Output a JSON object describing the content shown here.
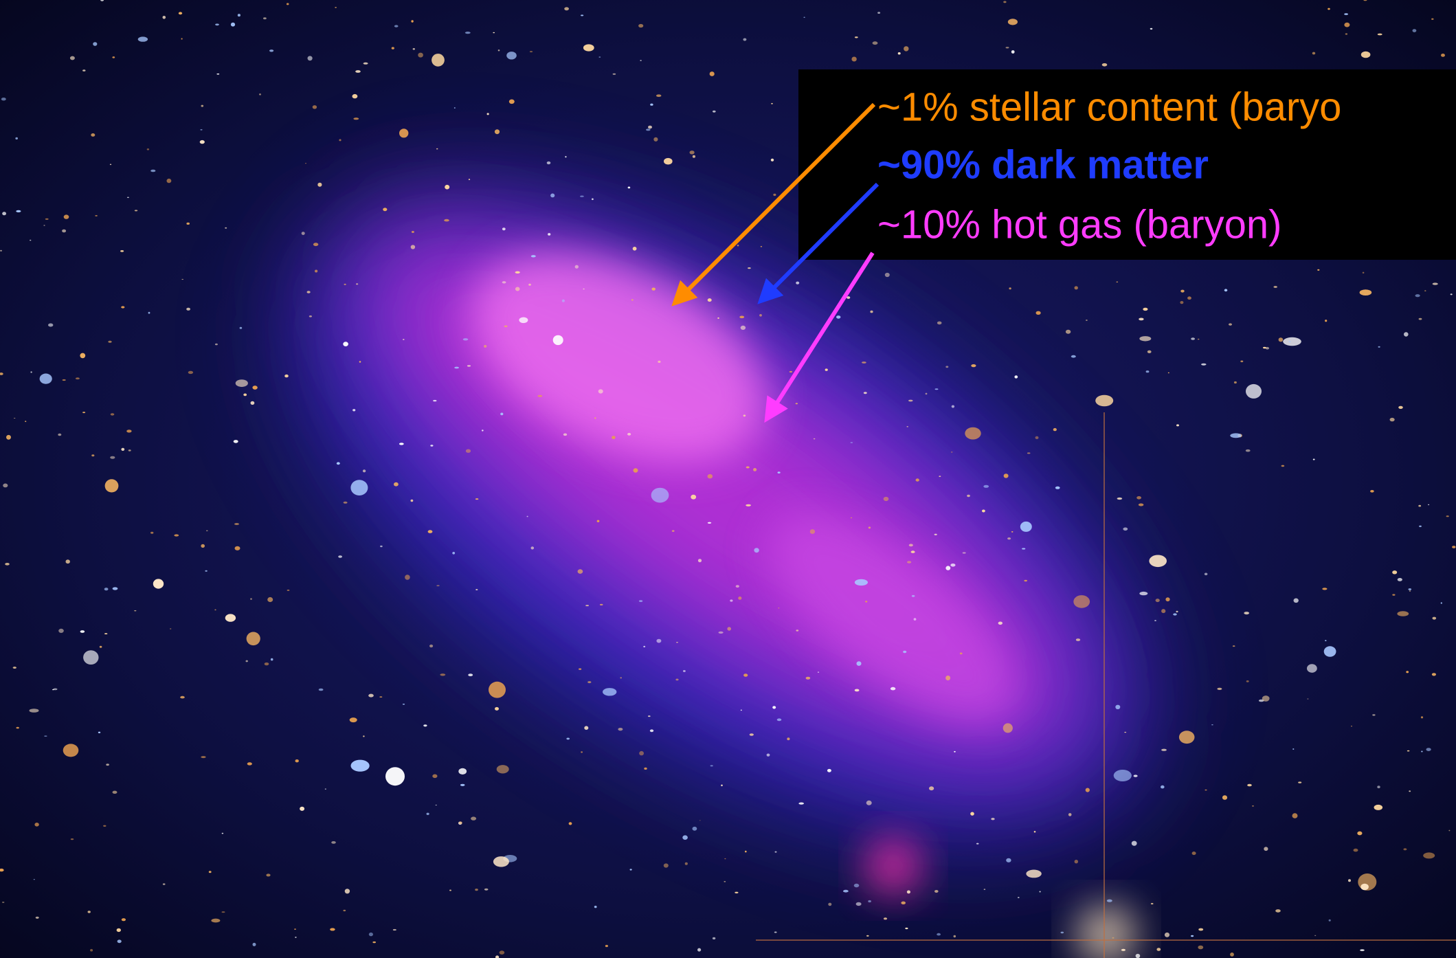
{
  "annotations": [
    {
      "text": "~1% stellar content (baryo",
      "color": "#ff8c00"
    },
    {
      "text": "~90% dark matter",
      "color": "#1f3cff"
    },
    {
      "text": "~10% hot gas (baryon)",
      "color": "#ff3cff"
    }
  ]
}
